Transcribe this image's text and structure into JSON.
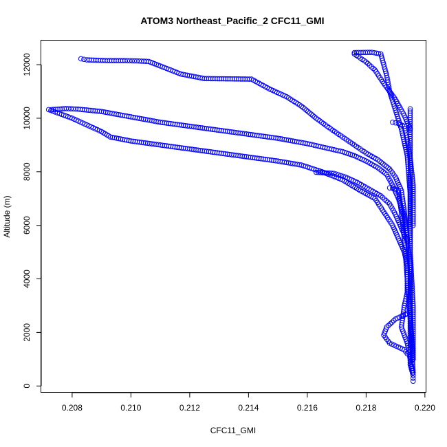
{
  "chart_data": {
    "type": "scatter",
    "title": "ATOM3 Northeast_Pacific_2 CFC11_GMI",
    "xlabel": "CFC11_GMI",
    "ylabel": "Altitude (m)",
    "xlim": [
      0.20695,
      0.22005
    ],
    "ylim": [
      -250,
      12900
    ],
    "x_ticks": [
      0.208,
      0.21,
      0.212,
      0.214,
      0.216,
      0.218,
      0.22
    ],
    "x_tick_labels": [
      "0.208",
      "0.210",
      "0.212",
      "0.214",
      "0.216",
      "0.218",
      "0.220"
    ],
    "y_ticks": [
      0,
      2000,
      4000,
      6000,
      8000,
      10000,
      12000
    ],
    "y_tick_labels": [
      "0",
      "2000",
      "4000",
      "6000",
      "8000",
      "10000",
      "12000"
    ],
    "grid": false,
    "marker": "open-circle",
    "color": "#0000ff",
    "series": [
      {
        "x": [
          0.2083,
          0.2085,
          0.2092,
          0.2098,
          0.2102,
          0.2106,
          0.211,
          0.2117,
          0.2125,
          0.2133,
          0.2141,
          0.2147,
          0.2153,
          0.2158,
          0.2163,
          0.2168,
          0.2172,
          0.2176,
          0.218,
          0.2184,
          0.2188,
          0.219,
          0.2192,
          0.2193,
          0.2194,
          0.2195,
          0.2195,
          0.2195,
          0.2195,
          0.2195,
          0.2196,
          0.2196
        ],
        "y": [
          12220,
          12180,
          12150,
          12150,
          12140,
          12120,
          11950,
          11650,
          11480,
          11470,
          11460,
          11100,
          10800,
          10450,
          10000,
          9600,
          9300,
          9000,
          8700,
          8450,
          8100,
          7800,
          7300,
          6500,
          5500,
          4500,
          3500,
          2500,
          1500,
          800,
          400,
          180
        ]
      },
      {
        "x": [
          0.2072,
          0.2075,
          0.208,
          0.2085,
          0.209,
          0.2093,
          0.21,
          0.211,
          0.212,
          0.213,
          0.214,
          0.215,
          0.2158,
          0.2165,
          0.2172,
          0.2178,
          0.2183,
          0.2186,
          0.2189,
          0.2191,
          0.2193,
          0.2194,
          0.2194,
          0.2193,
          0.2192,
          0.2194,
          0.2195,
          0.2196
        ],
        "y": [
          10320,
          10200,
          10000,
          9750,
          9500,
          9300,
          9150,
          9000,
          8850,
          8700,
          8550,
          8400,
          8250,
          8000,
          7700,
          7300,
          7000,
          6500,
          6000,
          5500,
          5000,
          4500,
          3500,
          3000,
          2200,
          1600,
          1000,
          400
        ]
      },
      {
        "x": [
          0.2073,
          0.2078,
          0.2082,
          0.209,
          0.21,
          0.211,
          0.212,
          0.213,
          0.214,
          0.215,
          0.216,
          0.2166,
          0.2172,
          0.2176,
          0.218,
          0.2184,
          0.2187,
          0.2189,
          0.2191,
          0.2193,
          0.2194
        ],
        "y": [
          10320,
          10360,
          10340,
          10250,
          10050,
          9850,
          9700,
          9550,
          9400,
          9250,
          9050,
          8900,
          8750,
          8600,
          8400,
          8150,
          7900,
          7500,
          7000,
          6300,
          5500
        ]
      },
      {
        "x": [
          0.2176,
          0.2182,
          0.2185,
          0.2186,
          0.2187,
          0.2188,
          0.219,
          0.2192,
          0.2194,
          0.2195,
          0.2195,
          0.2196,
          0.2196
        ],
        "y": [
          12450,
          12460,
          12400,
          12000,
          11600,
          11000,
          10300,
          9600,
          8600,
          7200,
          5000,
          3000,
          1000
        ]
      },
      {
        "x": [
          0.2176,
          0.218,
          0.2183,
          0.2186,
          0.219,
          0.2193,
          0.2195
        ],
        "y": [
          12400,
          12100,
          11800,
          11300,
          10700,
          10100,
          9600
        ]
      },
      {
        "x": [
          0.2163,
          0.2166,
          0.2169,
          0.2173,
          0.2177,
          0.2181,
          0.2185,
          0.2188,
          0.219,
          0.2192,
          0.2194
        ],
        "y": [
          7980,
          7960,
          7940,
          7800,
          7600,
          7350,
          7100,
          6800,
          6400,
          5900,
          5400
        ]
      },
      {
        "x": [
          0.2189,
          0.2191,
          0.2193,
          0.2194,
          0.2195,
          0.2196,
          0.2196
        ],
        "y": [
          9850,
          9800,
          9700,
          9200,
          8500,
          7500,
          6000
        ]
      },
      {
        "x": [
          0.2188,
          0.219,
          0.2191,
          0.2192,
          0.2193,
          0.2194,
          0.2195,
          0.2196
        ],
        "y": [
          7400,
          7350,
          7300,
          6500,
          5500,
          4000,
          2500,
          1000
        ]
      },
      {
        "x": [
          0.2194,
          0.219,
          0.2187,
          0.2186,
          0.2188,
          0.2191,
          0.2193,
          0.2194
        ],
        "y": [
          2700,
          2500,
          2200,
          1900,
          1600,
          1450,
          1350,
          1200
        ]
      },
      {
        "x": [
          0.2195,
          0.2195,
          0.2195,
          0.2195,
          0.2195,
          0.2196
        ],
        "y": [
          10350,
          9000,
          7000,
          5000,
          3000,
          500
        ]
      }
    ]
  }
}
